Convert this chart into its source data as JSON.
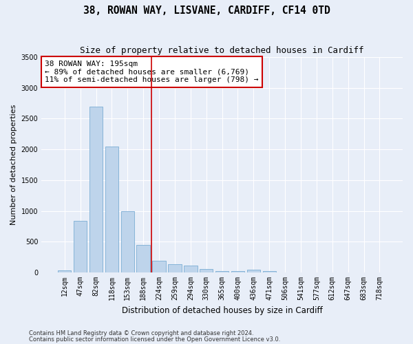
{
  "title_line1": "38, ROWAN WAY, LISVANE, CARDIFF, CF14 0TD",
  "title_line2": "Size of property relative to detached houses in Cardiff",
  "xlabel": "Distribution of detached houses by size in Cardiff",
  "ylabel": "Number of detached properties",
  "categories": [
    "12sqm",
    "47sqm",
    "82sqm",
    "118sqm",
    "153sqm",
    "188sqm",
    "224sqm",
    "259sqm",
    "294sqm",
    "330sqm",
    "365sqm",
    "400sqm",
    "436sqm",
    "471sqm",
    "506sqm",
    "541sqm",
    "577sqm",
    "612sqm",
    "647sqm",
    "683sqm",
    "718sqm"
  ],
  "values": [
    30,
    840,
    2700,
    2050,
    1000,
    450,
    195,
    130,
    110,
    55,
    25,
    20,
    50,
    25,
    5,
    5,
    0,
    0,
    0,
    0,
    5
  ],
  "bar_color": "#bed4eb",
  "bar_edge_color": "#7aadd4",
  "vline_x_index": 6,
  "vline_color": "#cc0000",
  "annotation_text": "38 ROWAN WAY: 195sqm\n← 89% of detached houses are smaller (6,769)\n11% of semi-detached houses are larger (798) →",
  "annotation_box_color": "#ffffff",
  "annotation_box_edge": "#cc0000",
  "ylim": [
    0,
    3500
  ],
  "yticks": [
    0,
    500,
    1000,
    1500,
    2000,
    2500,
    3000,
    3500
  ],
  "bg_color": "#e8eef8",
  "plot_bg_color": "#e8eef8",
  "footer_line1": "Contains HM Land Registry data © Crown copyright and database right 2024.",
  "footer_line2": "Contains public sector information licensed under the Open Government Licence v3.0.",
  "title_fontsize": 10.5,
  "subtitle_fontsize": 9,
  "tick_fontsize": 7,
  "ylabel_fontsize": 8,
  "xlabel_fontsize": 8.5,
  "annotation_fontsize": 8,
  "footer_fontsize": 6
}
